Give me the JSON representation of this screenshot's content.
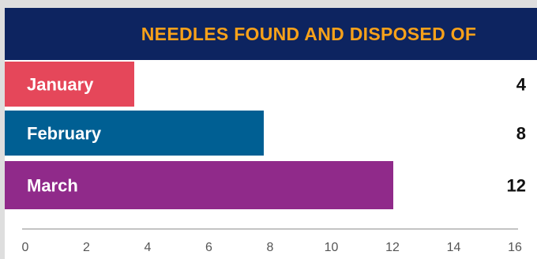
{
  "chart_data": {
    "type": "bar",
    "orientation": "horizontal",
    "title": "NEEDLES FOUND AND DISPOSED OF",
    "categories": [
      "January",
      "February",
      "March"
    ],
    "values": [
      4,
      8,
      12
    ],
    "value_labels": [
      "4",
      "8",
      "12"
    ],
    "xlim": [
      0,
      16
    ],
    "ticks": [
      0,
      2,
      4,
      6,
      8,
      10,
      12,
      14,
      16
    ],
    "tick_labels": [
      "0",
      "2",
      "4",
      "6",
      "8",
      "10",
      "12",
      "14",
      "16"
    ],
    "grid": false,
    "colors": [
      "#e5475a",
      "#005f93",
      "#902a8a"
    ],
    "title_color": "#f7a11a",
    "banner_color": "#0d2460"
  }
}
